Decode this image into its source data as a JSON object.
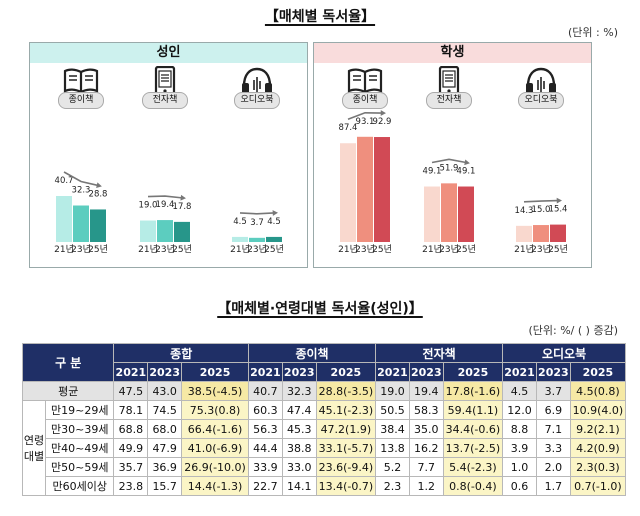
{
  "title1": "【매체별 독서율】",
  "unit1": "(단위 : %)",
  "panels": [
    {
      "label": "성인",
      "groups": [
        {
          "label": "종이책",
          "icon": "book-icon",
          "values": [
            40.7,
            32.3,
            28.8
          ],
          "value_labels": [
            "40.7",
            "32.3",
            "28.8"
          ],
          "years": [
            "21년",
            "23년",
            "25년"
          ],
          "trend": "down"
        },
        {
          "label": "전자책",
          "icon": "ebook-icon",
          "values": [
            19.0,
            19.4,
            17.8
          ],
          "value_labels": [
            "19.0",
            "19.4",
            "17.8"
          ],
          "years": [
            "21년",
            "23년",
            "25년"
          ],
          "trend": "peak"
        },
        {
          "label": "오디오북",
          "icon": "headphones-icon",
          "values": [
            4.5,
            3.7,
            4.5
          ],
          "value_labels": [
            "4.5",
            "3.7",
            "4.5"
          ],
          "years": [
            "21년",
            "23년",
            "25년"
          ],
          "trend": "up"
        }
      ]
    },
    {
      "label": "학생",
      "groups": [
        {
          "label": "종이책",
          "icon": "book-icon",
          "values": [
            87.4,
            93.1,
            92.9
          ],
          "value_labels": [
            "87.4",
            "93.1",
            "92.9"
          ],
          "years": [
            "21년",
            "23년",
            "25년"
          ],
          "trend": "peak"
        },
        {
          "label": "전자책",
          "icon": "ebook-icon",
          "values": [
            49.1,
            51.9,
            49.1
          ],
          "value_labels": [
            "49.1",
            "51.9",
            "49.1"
          ],
          "years": [
            "21년",
            "23년",
            "25년"
          ],
          "trend": "peak"
        },
        {
          "label": "오디오북",
          "icon": "headphones-icon",
          "values": [
            14.3,
            15.0,
            15.4
          ],
          "value_labels": [
            "14.3",
            "15.0",
            "15.4"
          ],
          "years": [
            "21년",
            "23년",
            "25년"
          ],
          "trend": "up"
        }
      ]
    }
  ],
  "colors": {
    "adult": [
      "#b6ece6",
      "#5ccdbf",
      "#27968a"
    ],
    "student": [
      "#f9d8ce",
      "#ef8f7e",
      "#d14a55"
    ]
  },
  "title2": "【매체별·연령대별 독서율(성인)】",
  "unit2": "(단위: %/ ( ) 증감)",
  "table": {
    "corner": "구  분",
    "groups": [
      "종합",
      "종이책",
      "전자책",
      "오디오북"
    ],
    "years": [
      "2021",
      "2023",
      "2025"
    ],
    "age_group_label": "연령\n대별",
    "rows": [
      {
        "label": "평균",
        "cells": [
          "47.5",
          "43.0",
          "38.5(-4.5)",
          "40.7",
          "32.3",
          "28.8(-3.5)",
          "19.0",
          "19.4",
          "17.8(-1.6)",
          "4.5",
          "3.7",
          "4.5(0.8)"
        ]
      },
      {
        "label": "만19~29세",
        "cells": [
          "78.1",
          "74.5",
          "75.3(0.8)",
          "60.3",
          "47.4",
          "45.1(-2.3)",
          "50.5",
          "58.3",
          "59.4(1.1)",
          "12.0",
          "6.9",
          "10.9(4.0)"
        ]
      },
      {
        "label": "만30~39세",
        "cells": [
          "68.8",
          "68.0",
          "66.4(-1.6)",
          "56.3",
          "45.3",
          "47.2(1.9)",
          "38.4",
          "35.0",
          "34.4(-0.6)",
          "8.8",
          "7.1",
          "9.2(2.1)"
        ]
      },
      {
        "label": "만40~49세",
        "cells": [
          "49.9",
          "47.9",
          "41.0(-6.9)",
          "44.4",
          "38.8",
          "33.1(-5.7)",
          "13.8",
          "16.2",
          "13.7(-2.5)",
          "3.9",
          "3.3",
          "4.2(0.9)"
        ]
      },
      {
        "label": "만50~59세",
        "cells": [
          "35.7",
          "36.9",
          "26.9(-10.0)",
          "33.9",
          "33.0",
          "23.6(-9.4)",
          "5.2",
          "7.7",
          "5.4(-2.3)",
          "1.0",
          "2.0",
          "2.3(0.3)"
        ]
      },
      {
        "label": "만60세이상",
        "cells": [
          "23.8",
          "15.7",
          "14.4(-1.3)",
          "22.7",
          "14.1",
          "13.4(-0.7)",
          "2.3",
          "1.2",
          "0.8(-0.4)",
          "0.6",
          "1.7",
          "0.7(-1.0)"
        ]
      }
    ]
  },
  "chart_data": [
    {
      "type": "bar",
      "title": "매체별 독서율 - 성인",
      "categories": [
        "종이책",
        "전자책",
        "오디오북"
      ],
      "series": [
        {
          "name": "21년",
          "values": [
            40.7,
            19.0,
            4.5
          ]
        },
        {
          "name": "23년",
          "values": [
            32.3,
            19.4,
            3.7
          ]
        },
        {
          "name": "25년",
          "values": [
            28.8,
            17.8,
            4.5
          ]
        }
      ],
      "ylabel": "%",
      "ylim": [
        0,
        100
      ]
    },
    {
      "type": "bar",
      "title": "매체별 독서율 - 학생",
      "categories": [
        "종이책",
        "전자책",
        "오디오북"
      ],
      "series": [
        {
          "name": "21년",
          "values": [
            87.4,
            49.1,
            14.3
          ]
        },
        {
          "name": "23년",
          "values": [
            93.1,
            51.9,
            15.0
          ]
        },
        {
          "name": "25년",
          "values": [
            92.9,
            49.1,
            15.4
          ]
        }
      ],
      "ylabel": "%",
      "ylim": [
        0,
        100
      ]
    }
  ]
}
